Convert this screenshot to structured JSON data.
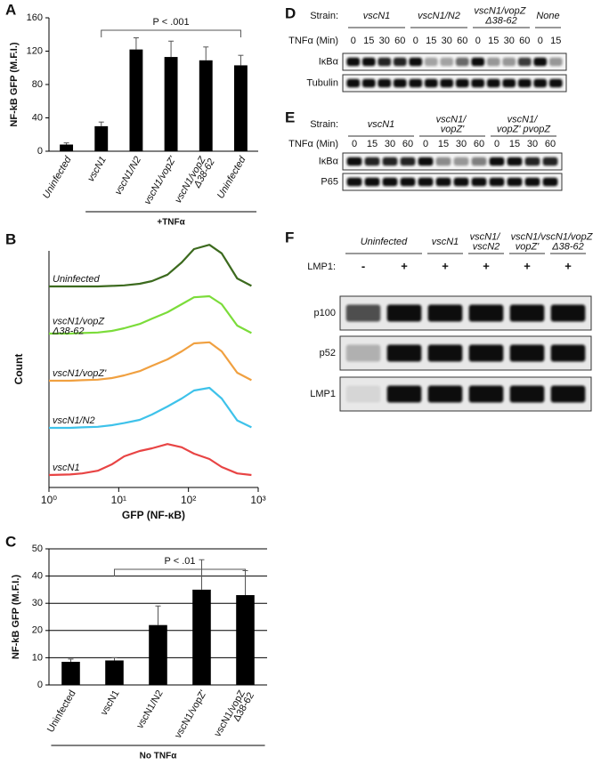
{
  "chart_data": [
    {
      "type": "bar",
      "panel": "A",
      "y_label": "NF-kB GFP (M.F.I.)",
      "categories": [
        "Uninfected",
        "vscN1",
        "vscN1/N2",
        "vscN1/vopZ'",
        "vscN1/vopZ Δ38-62",
        "Uninfected"
      ],
      "values": [
        8,
        30,
        122,
        113,
        109,
        103
      ],
      "errors": [
        2,
        5,
        14,
        19,
        16,
        12
      ],
      "color": "#000000",
      "ylim": [
        0,
        160
      ],
      "yticks": [
        0,
        40,
        80,
        120,
        160
      ],
      "grid": false,
      "annotation": "P < .001",
      "group_label": "+TNFα"
    },
    {
      "type": "line",
      "panel": "B",
      "x_label": "GFP (NF-κB)",
      "y_label": "Count",
      "x": [
        1,
        2,
        3,
        5,
        8,
        12,
        20,
        30,
        50,
        80,
        120,
        200,
        300,
        500,
        800
      ],
      "xlim": [
        1,
        1000
      ],
      "xscale": "log",
      "xticks": [
        {
          "value": 1,
          "label": "10⁰"
        },
        {
          "value": 10,
          "label": "10¹"
        },
        {
          "value": 100,
          "label": "10²"
        },
        {
          "value": 1000,
          "label": "10³"
        }
      ],
      "ylim": [
        0,
        100
      ],
      "series": [
        {
          "name": "Uninfected",
          "color": "#3c6a1e",
          "values": [
            0,
            0,
            0,
            0,
            1,
            2,
            5,
            10,
            22,
            45,
            70,
            78,
            62,
            15,
            1
          ]
        },
        {
          "name": "vscN1/vopZ Δ38-62",
          "color": "#7bdc3a",
          "values": [
            0,
            0,
            1,
            2,
            5,
            10,
            18,
            28,
            40,
            55,
            68,
            70,
            55,
            15,
            1
          ]
        },
        {
          "name": "vscN1/vopZ'",
          "color": "#f0a040",
          "values": [
            0,
            0,
            1,
            2,
            5,
            10,
            18,
            28,
            40,
            55,
            70,
            72,
            55,
            15,
            1
          ]
        },
        {
          "name": "vscN1/N2",
          "color": "#3ec2ea",
          "values": [
            0,
            0,
            1,
            2,
            5,
            9,
            15,
            25,
            40,
            55,
            70,
            75,
            55,
            14,
            1
          ]
        },
        {
          "name": "vscN1",
          "color": "#e84444",
          "values": [
            0,
            1,
            3,
            8,
            20,
            35,
            45,
            50,
            58,
            52,
            40,
            30,
            15,
            3,
            0
          ]
        }
      ]
    },
    {
      "type": "bar",
      "panel": "C",
      "y_label": "NF-kB GFP (M.F.I.)",
      "categories": [
        "Uninfected",
        "vscN1",
        "vscN1/N2",
        "vscN1/vopZ'",
        "vscN1/vopZ Δ38-62"
      ],
      "values": [
        8.5,
        9,
        22,
        35,
        33
      ],
      "errors": [
        1,
        1,
        7,
        11,
        9
      ],
      "color": "#000000",
      "ylim": [
        0,
        50
      ],
      "yticks": [
        0,
        10,
        20,
        30,
        40,
        50
      ],
      "grid": true,
      "annotation": "P < .01",
      "group_label": "No TNFα"
    }
  ],
  "blots": {
    "D": {
      "panel": "D",
      "strain_label": "Strain:",
      "time_label": "TNFα (Min)",
      "strains": [
        {
          "name": "vscN1",
          "lanes": [
            0,
            15,
            30,
            60
          ]
        },
        {
          "name": "vscN1/N2",
          "lanes": [
            0,
            15,
            30,
            60
          ]
        },
        {
          "name": "vscN1/vopZ Δ38-62",
          "lanes": [
            0,
            15,
            30,
            60
          ]
        },
        {
          "name": "None",
          "lanes": [
            0,
            15
          ]
        }
      ],
      "rows": [
        "IκBα",
        "Tubulin"
      ]
    },
    "E": {
      "panel": "E",
      "strain_label": "Strain:",
      "time_label": "TNFα (Min)",
      "strains": [
        {
          "name": "vscN1",
          "lanes": [
            0,
            15,
            30,
            60
          ]
        },
        {
          "name": "vscN1/ vopZ'",
          "lanes": [
            0,
            15,
            30,
            60
          ]
        },
        {
          "name": "vscN1/ vopZ' pvopZ",
          "lanes": [
            0,
            15,
            30,
            60
          ]
        }
      ],
      "rows": [
        "IκBα",
        "P65"
      ]
    },
    "F": {
      "panel": "F",
      "time_label": "LMP1:",
      "strains": [
        {
          "name": "Uninfected",
          "lanes": [
            "-",
            "+"
          ]
        },
        {
          "name": "vscN1",
          "lanes": [
            "+"
          ]
        },
        {
          "name": "vscN1/ vscN2",
          "lanes": [
            "+"
          ]
        },
        {
          "name": "vscN1/ vopZ'",
          "lanes": [
            "+"
          ]
        },
        {
          "name": "vscN1/vopZ Δ38-62",
          "lanes": [
            "+"
          ]
        }
      ],
      "rows": [
        "p100",
        "p52",
        "LMP1"
      ]
    }
  }
}
